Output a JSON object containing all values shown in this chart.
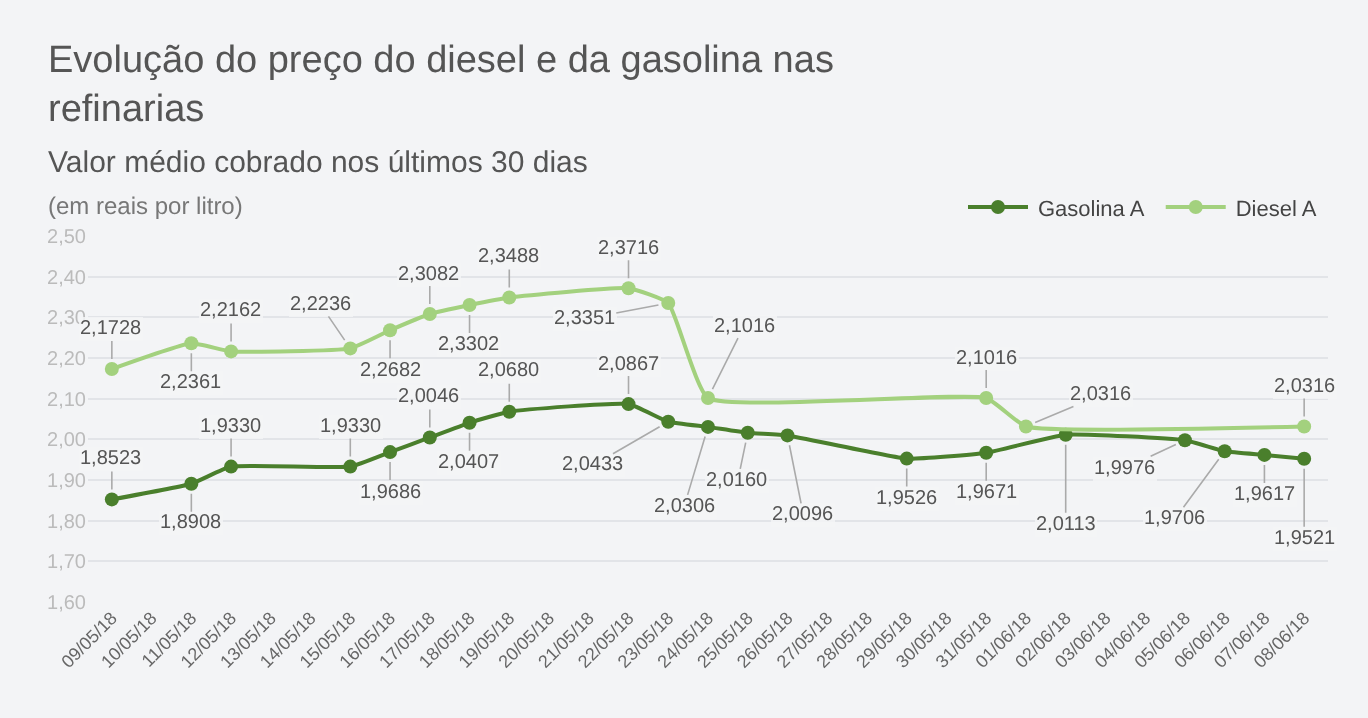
{
  "chart_data": {
    "type": "line",
    "title": "Evolução do preço do diesel e da gasolina nas refinarias",
    "subtitle": "Valor médio cobrado nos últimos 30 dias",
    "ylabel": "(em reais por litro)",
    "categories": [
      "09/05/18",
      "10/05/18",
      "11/05/18",
      "12/05/18",
      "13/05/18",
      "14/05/18",
      "15/05/18",
      "16/05/18",
      "17/05/18",
      "18/05/18",
      "19/05/18",
      "20/05/18",
      "21/05/18",
      "22/05/18",
      "23/05/18",
      "24/05/18",
      "25/05/18",
      "26/05/18",
      "27/05/18",
      "28/05/18",
      "29/05/18",
      "30/05/18",
      "31/05/18",
      "01/06/18",
      "02/06/18",
      "03/06/18",
      "04/06/18",
      "05/06/18",
      "06/06/18",
      "07/06/18",
      "08/06/18"
    ],
    "series": [
      {
        "name": "Gasolina A",
        "color": "#4a7f2c",
        "values": [
          1.8523,
          null,
          1.8908,
          1.933,
          null,
          null,
          1.933,
          1.9686,
          2.0046,
          2.0407,
          2.068,
          null,
          null,
          2.0867,
          2.0433,
          2.0306,
          2.016,
          2.0096,
          null,
          null,
          1.9526,
          null,
          1.9671,
          null,
          2.0113,
          null,
          null,
          1.9976,
          1.9706,
          1.9617,
          1.9521
        ],
        "value_labels": [
          "1,8523",
          null,
          "1,8908",
          "1,9330",
          null,
          null,
          "1,9330",
          "1,9686",
          "2,0046",
          "2,0407",
          "2,0680",
          null,
          null,
          "2,0867",
          "2,0433",
          "2,0306",
          "2,0160",
          "2,0096",
          null,
          null,
          "1,9526",
          null,
          "1,9671",
          null,
          "2,0113",
          null,
          null,
          "1,9976",
          "1,9706",
          "1,9617",
          "1,9521"
        ]
      },
      {
        "name": "Diesel A",
        "color": "#a3d17e",
        "values": [
          2.1728,
          null,
          2.2361,
          2.2162,
          null,
          null,
          2.2236,
          2.2682,
          2.3082,
          2.3302,
          2.3488,
          null,
          null,
          2.3716,
          2.3351,
          2.1016,
          null,
          null,
          null,
          null,
          null,
          null,
          2.1016,
          2.0316,
          null,
          null,
          null,
          null,
          null,
          null,
          2.0316
        ],
        "value_labels": [
          "2,1728",
          null,
          "2,2361",
          "2,2162",
          null,
          null,
          "2,2236",
          "2,2682",
          "2,3082",
          "2,3302",
          "2,3488",
          null,
          null,
          "2,3716",
          "2,3351",
          "2,1016",
          null,
          null,
          null,
          null,
          null,
          null,
          "2,1016",
          "2,0316",
          null,
          null,
          null,
          null,
          null,
          null,
          "2,0316"
        ]
      }
    ],
    "ylim": [
      1.6,
      2.5
    ],
    "yticks": [
      {
        "value": 1.6,
        "label": "1,60"
      },
      {
        "value": 1.7,
        "label": "1,70"
      },
      {
        "value": 1.8,
        "label": "1,80"
      },
      {
        "value": 1.9,
        "label": "1,90"
      },
      {
        "value": 2.0,
        "label": "2,00"
      },
      {
        "value": 2.1,
        "label": "2,10"
      },
      {
        "value": 2.2,
        "label": "2,20"
      },
      {
        "value": 2.3,
        "label": "2,30"
      },
      {
        "value": 2.4,
        "label": "2,40"
      },
      {
        "value": 2.5,
        "label": "2,50"
      }
    ],
    "grid": "y",
    "legend": "top right",
    "marker": "circle",
    "line_style": "solid"
  }
}
